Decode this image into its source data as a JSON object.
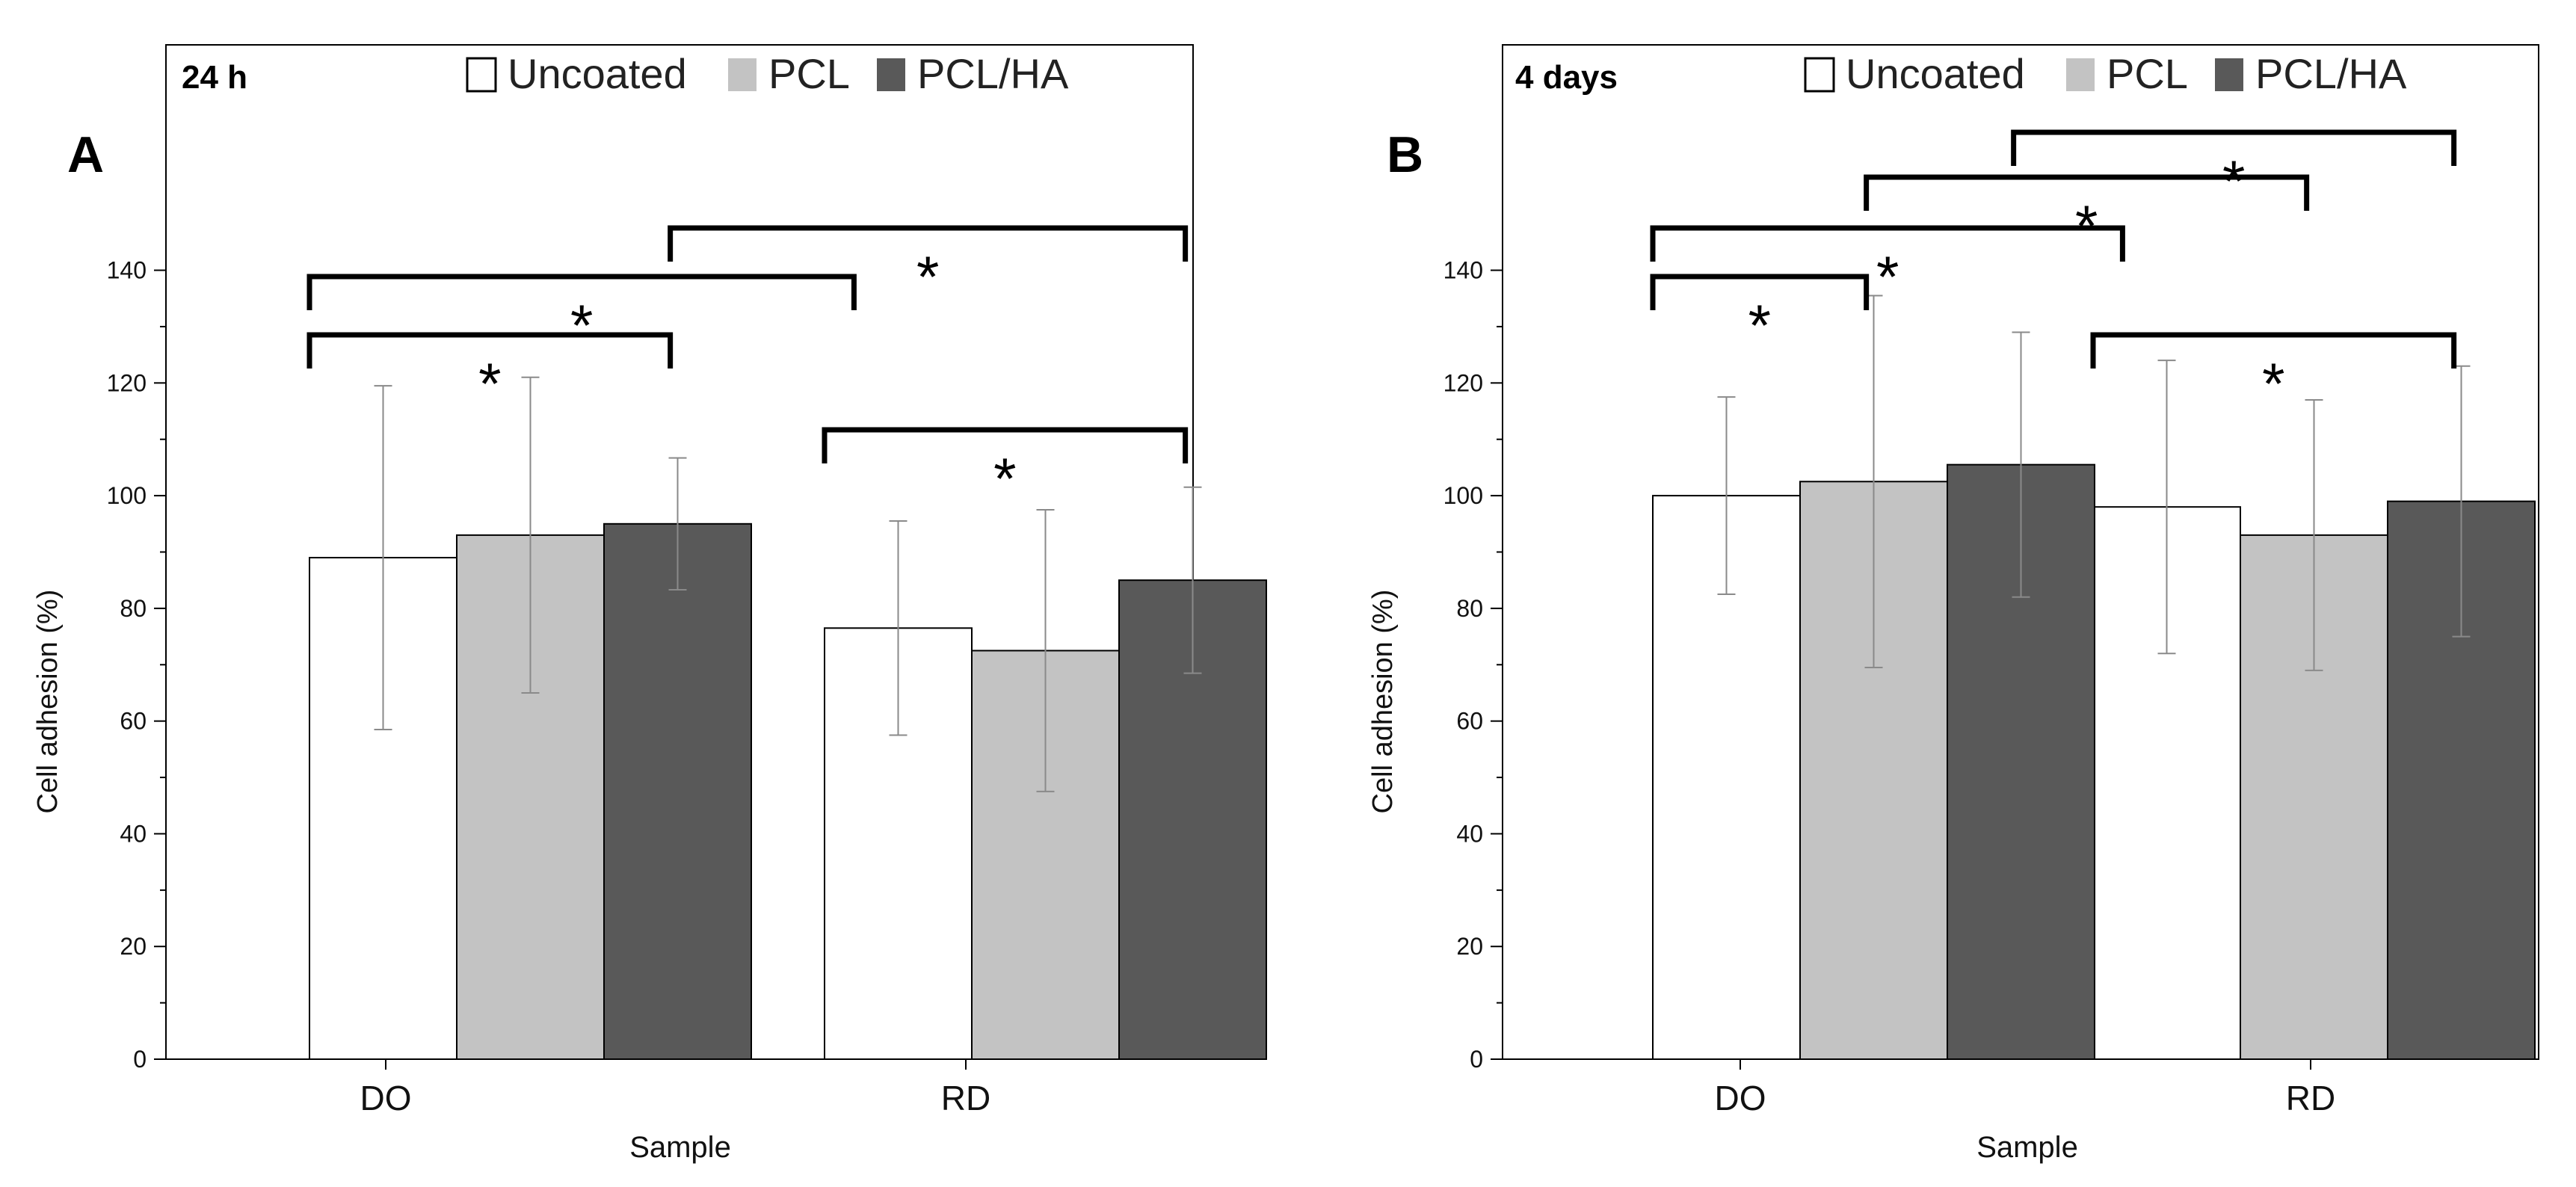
{
  "colors": {
    "uncoated": "#ffffff",
    "pcl": "#c3c3c3",
    "pclha": "#595959",
    "axis": "#000000",
    "errorbar": "#8a8a8a"
  },
  "chart_data": [
    {
      "type": "bar",
      "panel_label": "A",
      "title": "24 h",
      "xlabel": "Sample",
      "ylabel": "Cell adhesion (%)",
      "categories": [
        "DO",
        "RD"
      ],
      "ylim": [
        0,
        180
      ],
      "yticks": [
        "0",
        "20",
        "40",
        "60",
        "80",
        "100",
        "120",
        "140"
      ],
      "grid": false,
      "legend_position": "top",
      "series": [
        {
          "name": "Uncoated",
          "values": [
            89,
            76.5
          ],
          "errors": [
            30.5,
            19
          ]
        },
        {
          "name": "PCL",
          "values": [
            93,
            72.5
          ],
          "errors": [
            28,
            25
          ]
        },
        {
          "name": "PCL/HA",
          "values": [
            95,
            85
          ],
          "errors": [
            11.7,
            16.5
          ]
        }
      ],
      "annotations": [
        {
          "text": "*",
          "from": [
            "DO",
            "Uncoated"
          ],
          "to": [
            "DO",
            "PCL/HA"
          ]
        },
        {
          "text": "*",
          "from": [
            "DO",
            "Uncoated"
          ],
          "to": [
            "RD",
            "Uncoated"
          ]
        },
        {
          "text": "*",
          "from": [
            "DO",
            "PCL/HA"
          ],
          "to": [
            "RD",
            "PCL/HA"
          ]
        },
        {
          "text": "*",
          "from": [
            "RD",
            "Uncoated"
          ],
          "to": [
            "RD",
            "PCL/HA"
          ]
        }
      ]
    },
    {
      "type": "bar",
      "panel_label": "B",
      "title": "4 days",
      "xlabel": "Sample",
      "ylabel": "Cell adhesion (%)",
      "categories": [
        "DO",
        "RD"
      ],
      "ylim": [
        0,
        180
      ],
      "yticks": [
        "0",
        "20",
        "40",
        "60",
        "80",
        "100",
        "120",
        "140"
      ],
      "grid": false,
      "legend_position": "top",
      "series": [
        {
          "name": "Uncoated",
          "values": [
            100,
            98
          ],
          "errors": [
            17.5,
            26
          ]
        },
        {
          "name": "PCL",
          "values": [
            102.5,
            93
          ],
          "errors": [
            33,
            24
          ]
        },
        {
          "name": "PCL/HA",
          "values": [
            105.5,
            99
          ],
          "errors": [
            23.5,
            24
          ]
        }
      ],
      "annotations": [
        {
          "text": "*",
          "from": [
            "DO",
            "Uncoated"
          ],
          "to": [
            "DO",
            "PCL"
          ]
        },
        {
          "text": "*",
          "from": [
            "DO",
            "Uncoated"
          ],
          "to": [
            "RD",
            "Uncoated"
          ]
        },
        {
          "text": "*",
          "from": [
            "DO",
            "PCL"
          ],
          "to": [
            "RD",
            "PCL"
          ]
        },
        {
          "text": "*",
          "from": [
            "DO",
            "PCL/HA"
          ],
          "to": [
            "RD",
            "PCL/HA"
          ]
        },
        {
          "text": "*",
          "from": [
            "RD",
            "Uncoated"
          ],
          "to": [
            "RD",
            "PCL/HA"
          ]
        }
      ]
    }
  ]
}
